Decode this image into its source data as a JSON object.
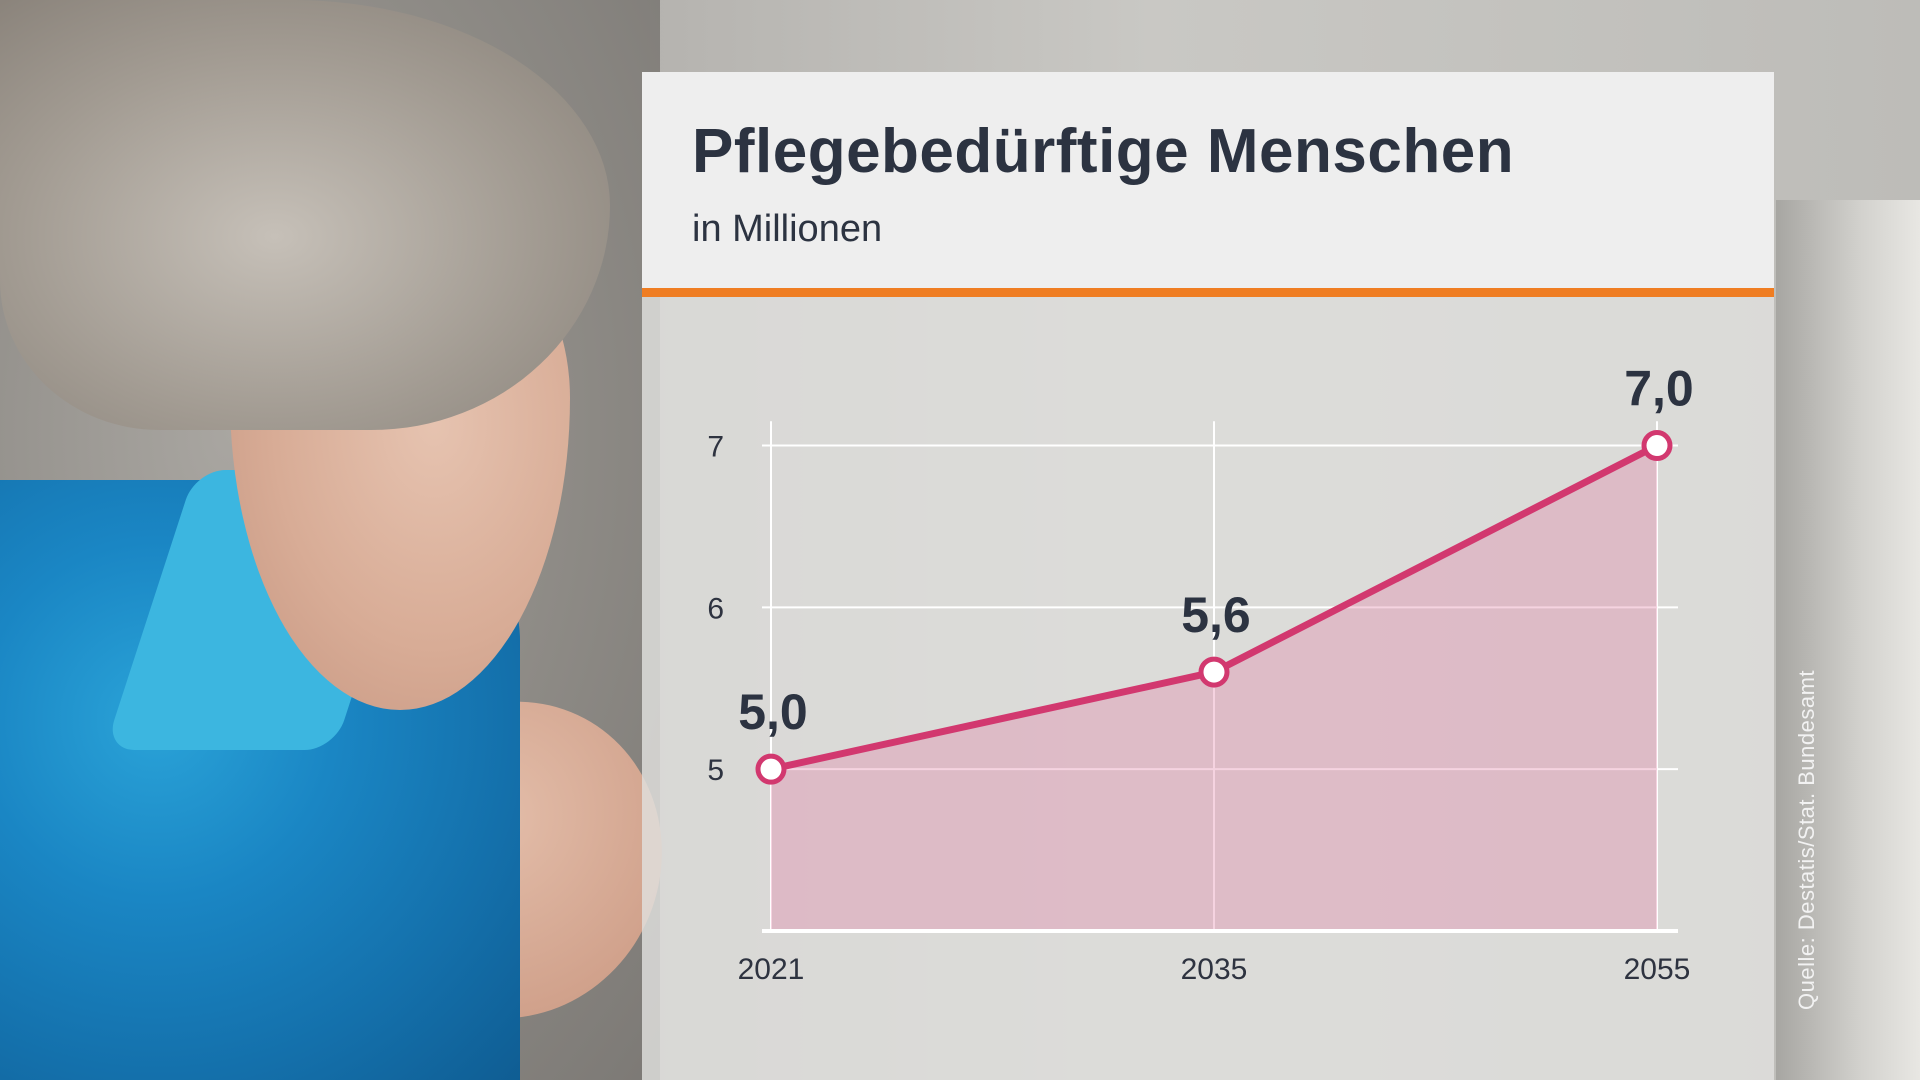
{
  "colors": {
    "title": "#2c3341",
    "accent_rule": "#ef7d22",
    "line": "#d2386f",
    "area": "rgba(226, 130, 165, 0.35)",
    "grid": "#ffffff"
  },
  "chart_data": {
    "type": "line",
    "title": "Pflegebedürftige Menschen",
    "subtitle": "in Millionen",
    "x": [
      "2021",
      "2035",
      "2055"
    ],
    "values": [
      5.0,
      5.6,
      7.0
    ],
    "data_labels": [
      "5,0",
      "5,6",
      "7,0"
    ],
    "ylim": [
      4,
      7
    ],
    "yticks": [
      5,
      6,
      7
    ],
    "ytick_labels": [
      "5",
      "6",
      "7"
    ],
    "grid": true,
    "area_fill": true,
    "markers": "hollow-circle",
    "source": "Quelle: Destatis/Stat. Bundesamt"
  }
}
